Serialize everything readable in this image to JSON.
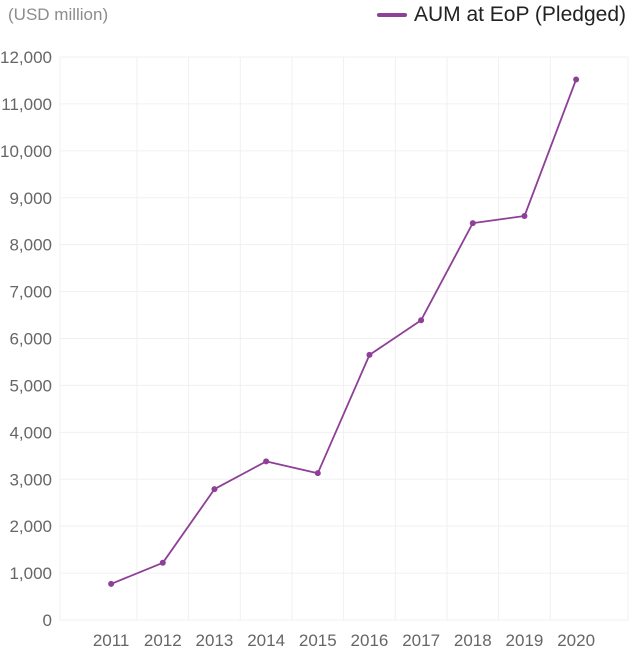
{
  "unit_label": "(USD million)",
  "colors": {
    "series": "#8e3f97",
    "grid": "#f0f0f0",
    "tick_text": "#666666"
  },
  "chart_data": {
    "type": "line",
    "title": "",
    "xlabel": "",
    "ylabel": "(USD million)",
    "legend_position": "top-right",
    "grid": true,
    "categories": [
      "2011",
      "2012",
      "2013",
      "2014",
      "2015",
      "2016",
      "2017",
      "2018",
      "2019",
      "2020"
    ],
    "ylim": [
      0,
      12000
    ],
    "yticks": [
      0,
      1000,
      2000,
      3000,
      4000,
      5000,
      6000,
      7000,
      8000,
      9000,
      10000,
      11000,
      12000
    ],
    "ytick_labels": [
      "0",
      "1,000",
      "2,000",
      "3,000",
      "4,000",
      "5,000",
      "6,000",
      "7,000",
      "8,000",
      "9,000",
      "10,000",
      "11,000",
      "12,000"
    ],
    "series": [
      {
        "name": "AUM at EoP (Pledged)",
        "values": [
          770,
          1220,
          2790,
          3380,
          3130,
          5650,
          6390,
          8460,
          8610,
          11520
        ]
      }
    ]
  }
}
